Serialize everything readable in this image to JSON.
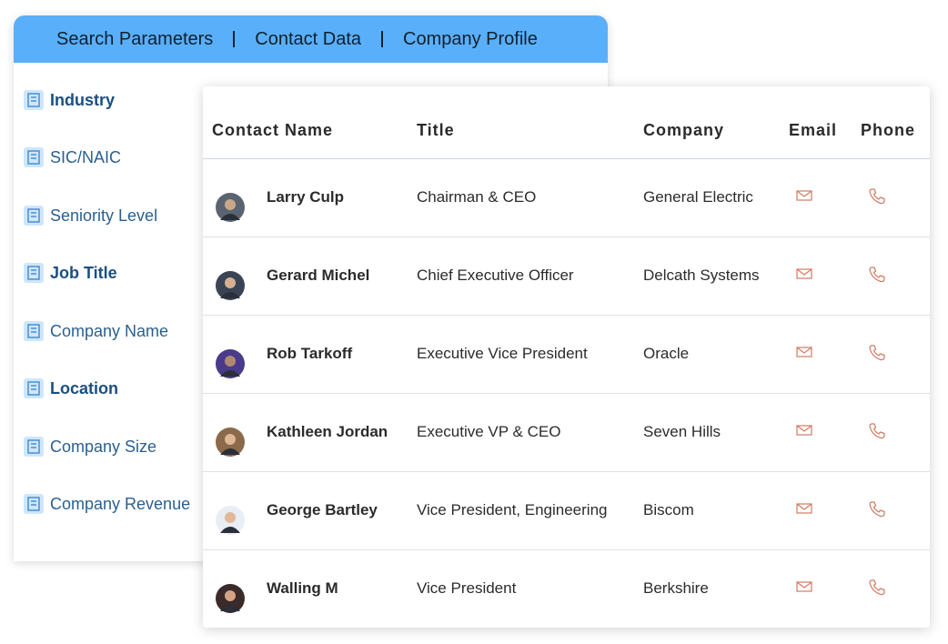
{
  "tabs": [
    "Search Parameters",
    "Contact Data",
    "Company Profile"
  ],
  "filters": [
    {
      "label": "Industry",
      "bold": true
    },
    {
      "label": "SIC/NAIC",
      "bold": false
    },
    {
      "label": "Seniority Level",
      "bold": false
    },
    {
      "label": "Job Title",
      "bold": true
    },
    {
      "label": "Company Name",
      "bold": false
    },
    {
      "label": "Location",
      "bold": true
    },
    {
      "label": "Company Size",
      "bold": false
    },
    {
      "label": "Company Revenue",
      "bold": false
    }
  ],
  "table": {
    "headers": [
      "Contact Name",
      "Title",
      "Company",
      "Email",
      "Phone"
    ],
    "rows": [
      [
        "Larry Culp",
        "Chairman & CEO",
        "General Electric"
      ],
      [
        "Gerard Michel",
        "Chief Executive Officer",
        "Delcath Systems"
      ],
      [
        "Rob Tarkoff",
        "Executive Vice President",
        "Oracle"
      ],
      [
        "Kathleen Jordan",
        "Executive VP & CEO",
        "Seven Hills"
      ],
      [
        "George Bartley",
        "Vice President, Engineering",
        "Biscom"
      ],
      [
        "Walling M",
        "Vice President",
        "Berkshire"
      ]
    ]
  }
}
